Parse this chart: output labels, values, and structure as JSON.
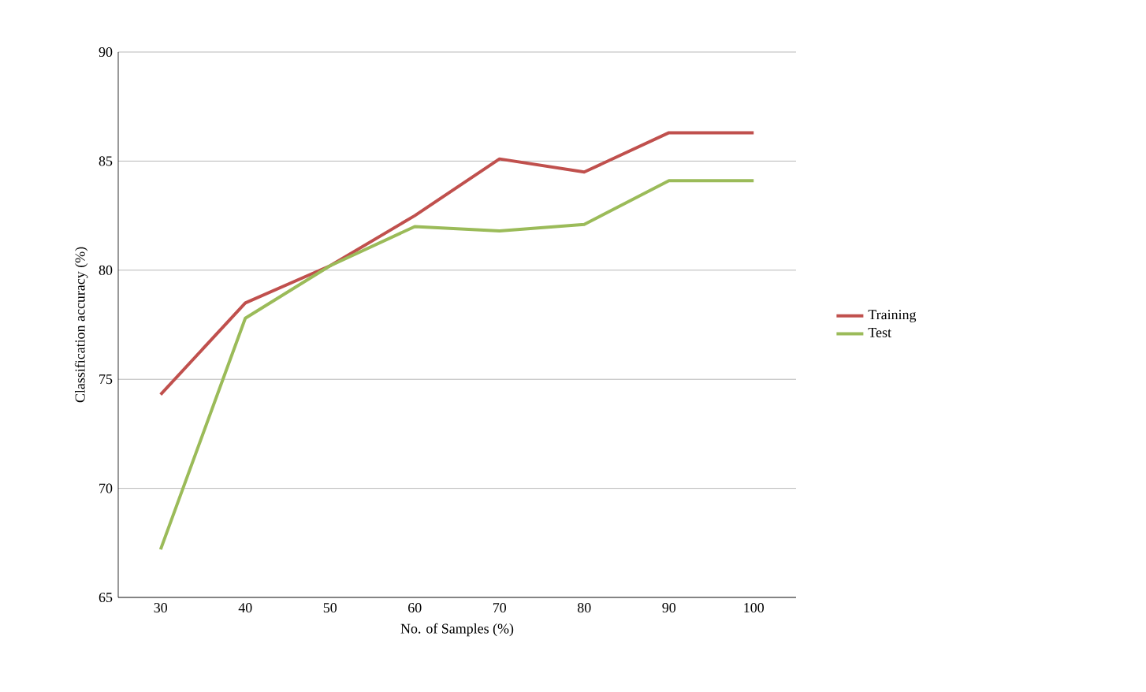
{
  "chart_data": {
    "type": "line",
    "xlabel": "No. of Samples (%)",
    "ylabel": "Classification accuracy (%)",
    "categories": [
      "30",
      "40",
      "50",
      "60",
      "70",
      "80",
      "90",
      "100"
    ],
    "series": [
      {
        "name": "Training",
        "color": "#c0504d",
        "values": [
          74.3,
          78.5,
          80.2,
          82.5,
          85.1,
          84.5,
          86.3,
          86.3
        ]
      },
      {
        "name": "Test",
        "color": "#9bbb59",
        "values": [
          67.2,
          77.8,
          80.2,
          82.0,
          81.8,
          82.1,
          84.1,
          84.1
        ]
      }
    ],
    "ylim": [
      65,
      90
    ],
    "yticks": [
      65,
      70,
      75,
      80,
      85,
      90
    ],
    "grid": "y",
    "legend": "right",
    "marker": "none",
    "line_style": "solid"
  }
}
